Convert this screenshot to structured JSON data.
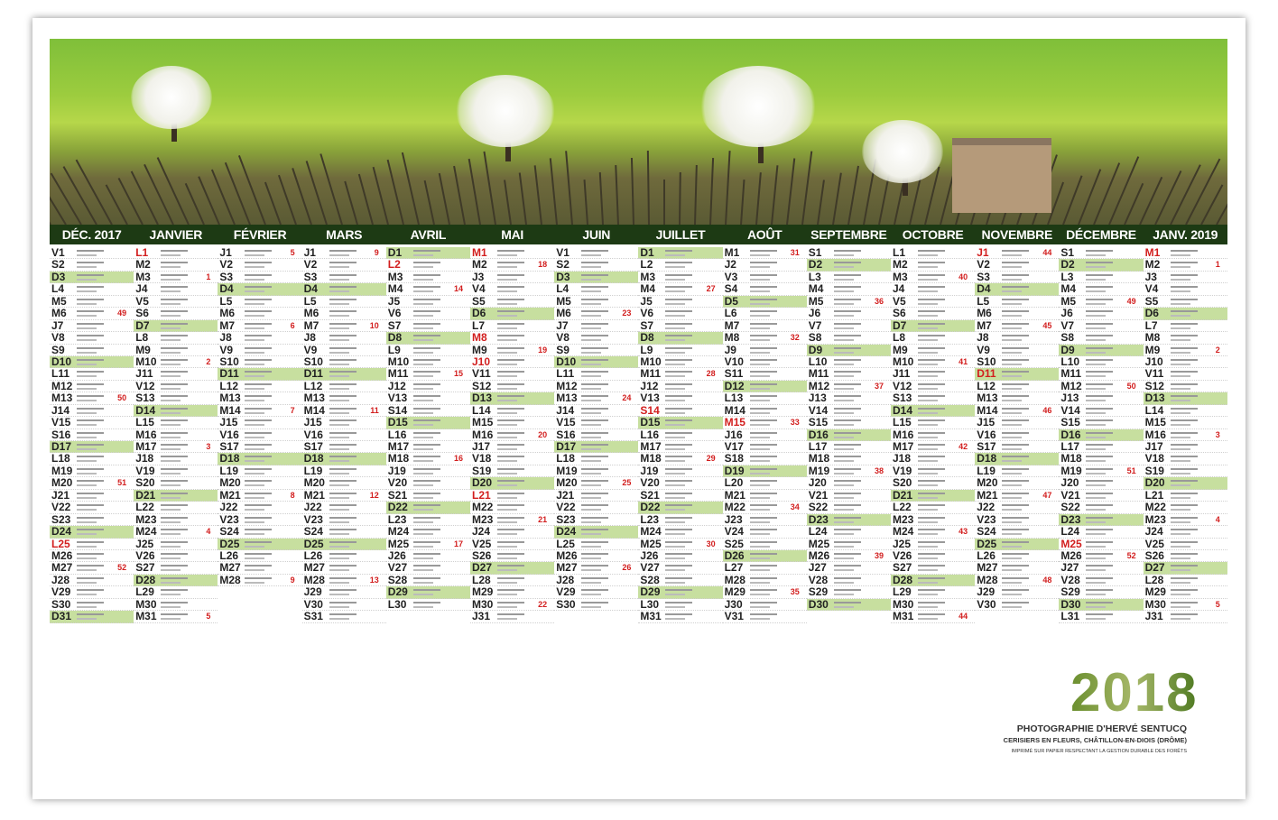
{
  "months": [
    {
      "name": "DÉC. 2017",
      "days": [
        "V1",
        "S2",
        "D3",
        "L4",
        "M5",
        "M6",
        "J7",
        "V8",
        "S9",
        "D10",
        "L11",
        "M12",
        "M13",
        "J14",
        "V15",
        "S16",
        "D17",
        "L18",
        "M19",
        "M20",
        "J21",
        "V22",
        "S23",
        "D24",
        "L25",
        "M26",
        "M27",
        "J28",
        "V29",
        "S30",
        "D31"
      ],
      "holidays": [
        "L25"
      ],
      "weeks": {
        "M6": "49",
        "M13": "50",
        "M20": "51",
        "M27": "52"
      }
    },
    {
      "name": "JANVIER",
      "days": [
        "L1",
        "M2",
        "M3",
        "J4",
        "V5",
        "S6",
        "D7",
        "L8",
        "M9",
        "M10",
        "J11",
        "V12",
        "S13",
        "D14",
        "L15",
        "M16",
        "M17",
        "J18",
        "V19",
        "S20",
        "D21",
        "L22",
        "M23",
        "M24",
        "J25",
        "V26",
        "S27",
        "D28",
        "L29",
        "M30",
        "M31"
      ],
      "holidays": [
        "L1"
      ],
      "weeks": {
        "M3": "1",
        "M10": "2",
        "M17": "3",
        "M24": "4",
        "M31": "5"
      }
    },
    {
      "name": "FÉVRIER",
      "days": [
        "J1",
        "V2",
        "S3",
        "D4",
        "L5",
        "M6",
        "M7",
        "J8",
        "V9",
        "S10",
        "D11",
        "L12",
        "M13",
        "M14",
        "J15",
        "V16",
        "S17",
        "D18",
        "L19",
        "M20",
        "M21",
        "J22",
        "V23",
        "S24",
        "D25",
        "L26",
        "M27",
        "M28"
      ],
      "holidays": [],
      "weeks": {
        "J1": "5",
        "M7": "6",
        "M14": "7",
        "M21": "8",
        "M28": "9"
      }
    },
    {
      "name": "MARS",
      "days": [
        "J1",
        "V2",
        "S3",
        "D4",
        "L5",
        "M6",
        "M7",
        "J8",
        "V9",
        "S10",
        "D11",
        "L12",
        "M13",
        "M14",
        "J15",
        "V16",
        "S17",
        "D18",
        "L19",
        "M20",
        "M21",
        "J22",
        "V23",
        "S24",
        "D25",
        "L26",
        "M27",
        "M28",
        "J29",
        "V30",
        "S31"
      ],
      "holidays": [],
      "weeks": {
        "J1": "9",
        "M7": "10",
        "M14": "11",
        "M21": "12",
        "M28": "13"
      }
    },
    {
      "name": "AVRIL",
      "days": [
        "D1",
        "L2",
        "M3",
        "M4",
        "J5",
        "V6",
        "S7",
        "D8",
        "L9",
        "M10",
        "M11",
        "J12",
        "V13",
        "S14",
        "D15",
        "L16",
        "M17",
        "M18",
        "J19",
        "V20",
        "S21",
        "D22",
        "L23",
        "M24",
        "M25",
        "J26",
        "V27",
        "S28",
        "D29",
        "L30"
      ],
      "holidays": [
        "L2"
      ],
      "weeks": {
        "M4": "14",
        "M11": "15",
        "M18": "16",
        "M25": "17"
      }
    },
    {
      "name": "MAI",
      "days": [
        "M1",
        "M2",
        "J3",
        "V4",
        "S5",
        "D6",
        "L7",
        "M8",
        "M9",
        "J10",
        "V11",
        "S12",
        "D13",
        "L14",
        "M15",
        "M16",
        "J17",
        "V18",
        "S19",
        "D20",
        "L21",
        "M22",
        "M23",
        "J24",
        "V25",
        "S26",
        "D27",
        "L28",
        "M29",
        "M30",
        "J31"
      ],
      "holidays": [
        "M1",
        "M8",
        "J10",
        "L21"
      ],
      "weeks": {
        "M2": "18",
        "M9": "19",
        "M16": "20",
        "M23": "21",
        "M30": "22"
      }
    },
    {
      "name": "JUIN",
      "days": [
        "V1",
        "S2",
        "D3",
        "L4",
        "M5",
        "M6",
        "J7",
        "V8",
        "S9",
        "D10",
        "L11",
        "M12",
        "M13",
        "J14",
        "V15",
        "S16",
        "D17",
        "L18",
        "M19",
        "M20",
        "J21",
        "V22",
        "S23",
        "D24",
        "L25",
        "M26",
        "M27",
        "J28",
        "V29",
        "S30"
      ],
      "holidays": [],
      "weeks": {
        "M6": "23",
        "M13": "24",
        "M20": "25",
        "M27": "26"
      }
    },
    {
      "name": "JUILLET",
      "days": [
        "D1",
        "L2",
        "M3",
        "M4",
        "J5",
        "V6",
        "S7",
        "D8",
        "L9",
        "M10",
        "M11",
        "J12",
        "V13",
        "S14",
        "D15",
        "L16",
        "M17",
        "M18",
        "J19",
        "V20",
        "S21",
        "D22",
        "L23",
        "M24",
        "M25",
        "J26",
        "V27",
        "S28",
        "D29",
        "L30",
        "M31"
      ],
      "holidays": [
        "S14"
      ],
      "weeks": {
        "M4": "27",
        "M11": "28",
        "M18": "29",
        "M25": "30"
      }
    },
    {
      "name": "AOÛT",
      "days": [
        "M1",
        "J2",
        "V3",
        "S4",
        "D5",
        "L6",
        "M7",
        "M8",
        "J9",
        "V10",
        "S11",
        "D12",
        "L13",
        "M14",
        "M15",
        "J16",
        "V17",
        "S18",
        "D19",
        "L20",
        "M21",
        "M22",
        "J23",
        "V24",
        "S25",
        "D26",
        "L27",
        "M28",
        "M29",
        "J30",
        "V31"
      ],
      "holidays": [
        "M15"
      ],
      "weeks": {
        "M1": "31",
        "M8": "32",
        "M15": "33",
        "M22": "34",
        "M29": "35"
      }
    },
    {
      "name": "SEPTEMBRE",
      "days": [
        "S1",
        "D2",
        "L3",
        "M4",
        "M5",
        "J6",
        "V7",
        "S8",
        "D9",
        "L10",
        "M11",
        "M12",
        "J13",
        "V14",
        "S15",
        "D16",
        "L17",
        "M18",
        "M19",
        "J20",
        "V21",
        "S22",
        "D23",
        "L24",
        "M25",
        "M26",
        "J27",
        "V28",
        "S29",
        "D30"
      ],
      "holidays": [],
      "weeks": {
        "M5": "36",
        "M12": "37",
        "M19": "38",
        "M26": "39"
      }
    },
    {
      "name": "OCTOBRE",
      "days": [
        "L1",
        "M2",
        "M3",
        "J4",
        "V5",
        "S6",
        "D7",
        "L8",
        "M9",
        "M10",
        "J11",
        "V12",
        "S13",
        "D14",
        "L15",
        "M16",
        "M17",
        "J18",
        "V19",
        "S20",
        "D21",
        "L22",
        "M23",
        "M24",
        "J25",
        "V26",
        "S27",
        "D28",
        "L29",
        "M30",
        "M31"
      ],
      "holidays": [],
      "weeks": {
        "M3": "40",
        "M10": "41",
        "M17": "42",
        "M24": "43",
        "M31": "44"
      }
    },
    {
      "name": "NOVEMBRE",
      "days": [
        "J1",
        "V2",
        "S3",
        "D4",
        "L5",
        "M6",
        "M7",
        "J8",
        "V9",
        "S10",
        "D11",
        "L12",
        "M13",
        "M14",
        "J15",
        "V16",
        "S17",
        "D18",
        "L19",
        "M20",
        "M21",
        "J22",
        "V23",
        "S24",
        "D25",
        "L26",
        "M27",
        "M28",
        "J29",
        "V30"
      ],
      "holidays": [
        "J1",
        "D11"
      ],
      "weeks": {
        "J1": "44",
        "M7": "45",
        "M14": "46",
        "M21": "47",
        "M28": "48"
      }
    },
    {
      "name": "DÉCEMBRE",
      "days": [
        "S1",
        "D2",
        "L3",
        "M4",
        "M5",
        "J6",
        "V7",
        "S8",
        "D9",
        "L10",
        "M11",
        "M12",
        "J13",
        "V14",
        "S15",
        "D16",
        "L17",
        "M18",
        "M19",
        "J20",
        "V21",
        "S22",
        "D23",
        "L24",
        "M25",
        "M26",
        "J27",
        "V28",
        "S29",
        "D30",
        "L31"
      ],
      "holidays": [
        "M25"
      ],
      "weeks": {
        "M5": "49",
        "M12": "50",
        "M19": "51",
        "M26": "52"
      }
    },
    {
      "name": "JANV. 2019",
      "days": [
        "M1",
        "M2",
        "J3",
        "V4",
        "S5",
        "D6",
        "L7",
        "M8",
        "M9",
        "J10",
        "V11",
        "S12",
        "D13",
        "L14",
        "M15",
        "M16",
        "J17",
        "V18",
        "S19",
        "D20",
        "L21",
        "M22",
        "M23",
        "J24",
        "V25",
        "S26",
        "D27",
        "L28",
        "M29",
        "M30",
        "J31"
      ],
      "holidays": [
        "M1"
      ],
      "weeks": {
        "M2": "1",
        "M9": "2",
        "M16": "3",
        "M23": "4",
        "M30": "5"
      }
    }
  ],
  "footer": {
    "year": "2018",
    "credit": "PHOTOGRAPHIE D'HERVÉ SENTUCQ",
    "caption": "CERISIERS EN FLEURS, CHÂTILLON-EN-DIOIS (DRÔME)",
    "note": "IMPRIMÉ SUR PAPIER RESPECTANT LA GESTION DURABLE DES FORÊTS"
  }
}
